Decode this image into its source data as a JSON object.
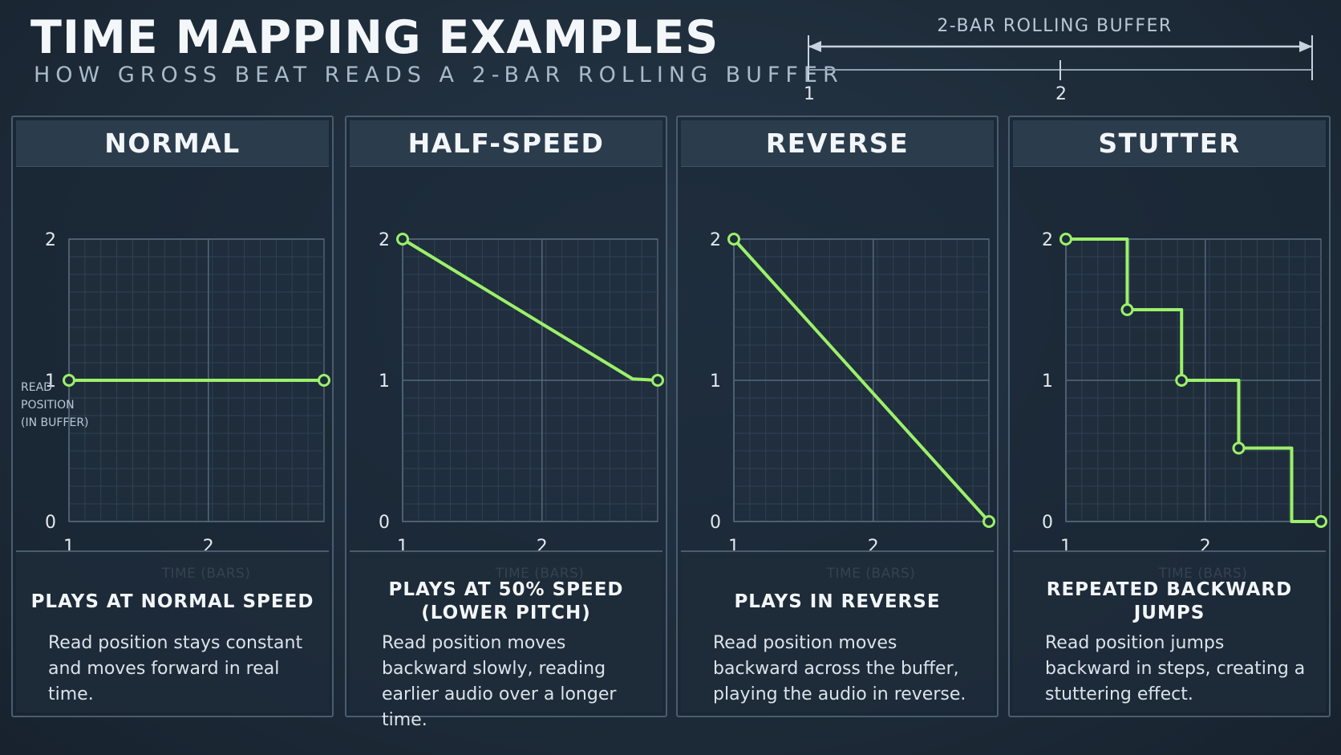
{
  "title": "TIME MAPPING EXAMPLES",
  "subtitle": "HOW GROSS BEAT READS A 2-BAR ROLLING BUFFER",
  "buffer": {
    "label": "2-BAR ROLLING BUFFER",
    "ticks": [
      "1",
      "2"
    ]
  },
  "colors": {
    "line": "#9cf06a",
    "grid": "#55687a",
    "background": "#1d2b3a"
  },
  "panels": [
    {
      "header": "NORMAL",
      "ylabel": [
        "READ",
        "POSITION",
        "(IN BUFFER)"
      ],
      "xlabel": "TIME (BARS)",
      "desc_title": "PLAYS AT NORMAL SPEED",
      "desc_text": "Read position stays constant and moves forward in real time."
    },
    {
      "header": "HALF-SPEED",
      "xlabel": "TIME (BARS)",
      "desc_title": "PLAYS AT 50% SPEED (LOWER PITCH)",
      "desc_text": "Read position moves backward slowly, reading earlier audio over a longer time."
    },
    {
      "header": "REVERSE",
      "xlabel": "TIME (BARS)",
      "desc_title": "PLAYS IN REVERSE",
      "desc_text": "Read position moves backward across the buffer, playing the audio in reverse."
    },
    {
      "header": "STUTTER",
      "xlabel": "TIME (BARS)",
      "desc_title": "REPEATED BACKWARD JUMPS",
      "desc_text": "Read position jumps backward in steps, creating a stuttering effect."
    }
  ],
  "chart_data": [
    {
      "type": "line",
      "title": "NORMAL",
      "xlabel": "TIME (BARS)",
      "ylabel": "READ POSITION (IN BUFFER)",
      "xlim": [
        1,
        2.83
      ],
      "ylim": [
        0,
        2
      ],
      "xticks": [
        "1",
        "2"
      ],
      "yticks": [
        "0",
        "1",
        "2"
      ],
      "grid": true,
      "series": [
        {
          "x": [
            1,
            2.83
          ],
          "y": [
            1,
            1
          ],
          "markers": [
            0,
            1
          ]
        }
      ]
    },
    {
      "type": "line",
      "title": "HALF-SPEED",
      "xlabel": "TIME (BARS)",
      "xlim": [
        1,
        2.83
      ],
      "ylim": [
        0,
        2
      ],
      "xticks": [
        "1",
        "2"
      ],
      "yticks": [
        "0",
        "1",
        "2"
      ],
      "grid": true,
      "series": [
        {
          "x": [
            1,
            2.65,
            2.83
          ],
          "y": [
            2,
            1.01,
            1
          ],
          "markers": [
            0,
            2
          ]
        }
      ]
    },
    {
      "type": "line",
      "title": "REVERSE",
      "xlabel": "TIME (BARS)",
      "xlim": [
        1,
        2.83
      ],
      "ylim": [
        0,
        2
      ],
      "xticks": [
        "1",
        "2"
      ],
      "yticks": [
        "0",
        "1",
        "2"
      ],
      "grid": true,
      "series": [
        {
          "x": [
            1,
            2.83
          ],
          "y": [
            2,
            0
          ],
          "markers": [
            0,
            1
          ]
        }
      ]
    },
    {
      "type": "line",
      "title": "STUTTER",
      "xlabel": "TIME (BARS)",
      "xlim": [
        1,
        2.83
      ],
      "ylim": [
        0,
        2
      ],
      "xticks": [
        "1",
        "2"
      ],
      "yticks": [
        "0",
        "1",
        "2"
      ],
      "grid": true,
      "series": [
        {
          "x": [
            1,
            1.44,
            1.44,
            1.83,
            1.83,
            2.24,
            2.24,
            2.62,
            2.62,
            2.83
          ],
          "y": [
            2,
            2,
            1.5,
            1.5,
            1,
            1,
            0.52,
            0.52,
            0,
            0
          ],
          "markers": [
            0,
            2,
            4,
            6,
            9
          ]
        }
      ]
    }
  ]
}
